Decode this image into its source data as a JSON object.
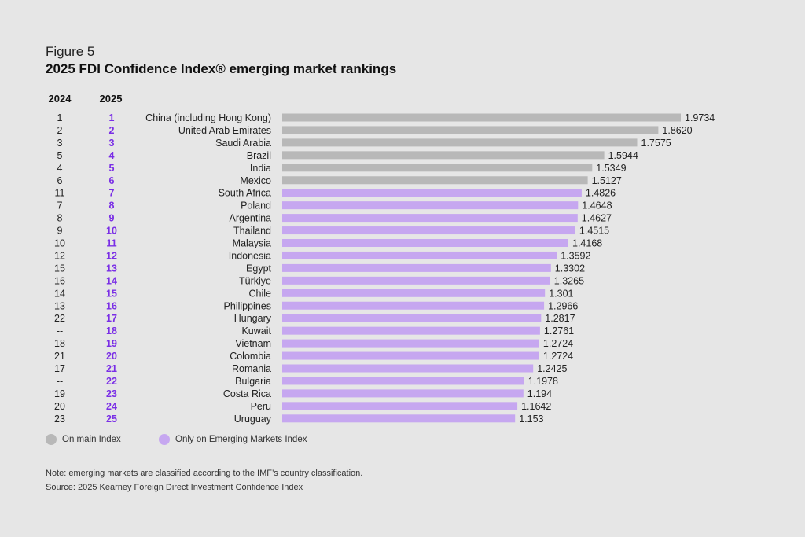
{
  "figure_label": "Figure 5",
  "title": "2025 FDI Confidence Index® emerging market rankings",
  "column_headers": {
    "prev_year": "2024",
    "curr_year": "2025"
  },
  "legend": {
    "main": {
      "label": "On main Index",
      "color": "#b8b8b8"
    },
    "emerging": {
      "label": "Only on Emerging Markets Index",
      "color": "#c6a7f0"
    }
  },
  "note": "Note: emerging markets are classified according to the IMF’s country classification.",
  "source": "Source: 2025 Kearney Foreign Direct Investment Confidence Index",
  "colors": {
    "rank_2025": "#7a2ee6",
    "grey_bar": "#b8b8b8",
    "purple_bar": "#c6a7f0"
  },
  "chart_data": {
    "type": "bar",
    "orientation": "horizontal",
    "title": "2025 FDI Confidence Index® emerging market rankings",
    "categories": [
      "China (including Hong Kong)",
      "United Arab Emirates",
      "Saudi Arabia",
      "Brazil",
      "India",
      "Mexico",
      "South Africa",
      "Poland",
      "Argentina",
      "Thailand",
      "Malaysia",
      "Indonesia",
      "Egypt",
      "Türkiye",
      "Chile",
      "Philippines",
      "Hungary",
      "Kuwait",
      "Vietnam",
      "Colombia",
      "Romania",
      "Bulgaria",
      "Costa Rica",
      "Peru",
      "Uruguay"
    ],
    "values": [
      1.9734,
      1.862,
      1.7575,
      1.5944,
      1.5349,
      1.5127,
      1.4826,
      1.4648,
      1.4627,
      1.4515,
      1.4168,
      1.3592,
      1.3302,
      1.3265,
      1.301,
      1.2966,
      1.2817,
      1.2761,
      1.2724,
      1.2724,
      1.2425,
      1.1978,
      1.194,
      1.1642,
      1.153
    ],
    "value_labels": [
      "1.9734",
      "1.8620",
      "1.7575",
      "1.5944",
      "1.5349",
      "1.5127",
      "1.4826",
      "1.4648",
      "1.4627",
      "1.4515",
      "1.4168",
      "1.3592",
      "1.3302",
      "1.3265",
      "1.301",
      "1.2966",
      "1.2817",
      "1.2761",
      "1.2724",
      "1.2724",
      "1.2425",
      "1.1978",
      "1.194",
      "1.1642",
      "1.153"
    ],
    "rank_2024": [
      "1",
      "2",
      "3",
      "5",
      "4",
      "6",
      "11",
      "7",
      "8",
      "9",
      "10",
      "12",
      "15",
      "16",
      "14",
      "13",
      "22",
      "--",
      "18",
      "21",
      "17",
      "--",
      "19",
      "20",
      "23"
    ],
    "rank_2025": [
      "1",
      "2",
      "3",
      "4",
      "5",
      "6",
      "7",
      "8",
      "9",
      "10",
      "11",
      "12",
      "13",
      "14",
      "15",
      "16",
      "17",
      "18",
      "19",
      "20",
      "21",
      "22",
      "23",
      "24",
      "25"
    ],
    "group": [
      "main",
      "main",
      "main",
      "main",
      "main",
      "main",
      "emerging",
      "emerging",
      "emerging",
      "emerging",
      "emerging",
      "emerging",
      "emerging",
      "emerging",
      "emerging",
      "emerging",
      "emerging",
      "emerging",
      "emerging",
      "emerging",
      "emerging",
      "emerging",
      "emerging",
      "emerging",
      "emerging"
    ],
    "xlim": [
      0,
      1.9734
    ],
    "grid": false
  }
}
